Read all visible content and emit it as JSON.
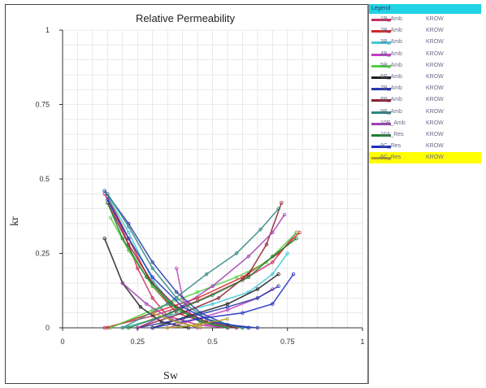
{
  "chart_data": {
    "type": "line",
    "title": "Relative Permeability",
    "xlabel": "Sw",
    "ylabel": "kr",
    "xlim": [
      0,
      1
    ],
    "ylim": [
      0,
      1
    ],
    "x_ticks": [
      "0",
      "0.25",
      "0.5",
      "0.75",
      "1"
    ],
    "y_ticks": [
      "0",
      "0.25",
      "0.5",
      "0.75",
      "1"
    ],
    "grid": true,
    "legend_position": "right panel",
    "legend_title": "Legend",
    "series": [
      {
        "name": "1B_Amb",
        "suffix": "KROW",
        "color": "#c83060",
        "krow": [
          [
            0.14,
            0.45
          ],
          [
            0.2,
            0.33
          ],
          [
            0.25,
            0.2
          ],
          [
            0.3,
            0.1
          ],
          [
            0.35,
            0.04
          ],
          [
            0.45,
            0.01
          ],
          [
            0.55,
            0.0
          ]
        ],
        "krw": [
          [
            0.14,
            0.0
          ],
          [
            0.3,
            0.04
          ],
          [
            0.45,
            0.09
          ],
          [
            0.6,
            0.16
          ],
          [
            0.7,
            0.22
          ],
          [
            0.78,
            0.32
          ]
        ]
      },
      {
        "name": "2B_Amb",
        "suffix": "KROW",
        "color": "#d02828",
        "krow": [
          [
            0.15,
            0.44
          ],
          [
            0.22,
            0.3
          ],
          [
            0.3,
            0.14
          ],
          [
            0.38,
            0.05
          ],
          [
            0.5,
            0.01
          ],
          [
            0.6,
            0.0
          ]
        ],
        "krw": [
          [
            0.15,
            0.0
          ],
          [
            0.3,
            0.05
          ],
          [
            0.45,
            0.1
          ],
          [
            0.6,
            0.17
          ],
          [
            0.72,
            0.25
          ],
          [
            0.79,
            0.32
          ]
        ]
      },
      {
        "name": "3B_Amb",
        "suffix": "KROW",
        "color": "#40c8d8",
        "krow": [
          [
            0.14,
            0.46
          ],
          [
            0.22,
            0.32
          ],
          [
            0.3,
            0.16
          ],
          [
            0.38,
            0.06
          ],
          [
            0.5,
            0.01
          ],
          [
            0.62,
            0.0
          ]
        ],
        "krw": [
          [
            0.2,
            0.0
          ],
          [
            0.35,
            0.04
          ],
          [
            0.5,
            0.08
          ],
          [
            0.62,
            0.12
          ],
          [
            0.7,
            0.18
          ],
          [
            0.75,
            0.25
          ]
        ]
      },
      {
        "name": "4B_Amb",
        "suffix": "KROW",
        "color": "#c040c0",
        "krow": [
          [
            0.38,
            0.2
          ],
          [
            0.4,
            0.1
          ],
          [
            0.43,
            0.04
          ],
          [
            0.48,
            0.01
          ],
          [
            0.55,
            0.0
          ]
        ],
        "krw": [
          [
            0.35,
            0.0
          ],
          [
            0.45,
            0.03
          ],
          [
            0.55,
            0.06
          ],
          [
            0.65,
            0.1
          ],
          [
            0.7,
            0.13
          ]
        ]
      },
      {
        "name": "5B_Amb",
        "suffix": "KROW",
        "color": "#50d040",
        "krow": [
          [
            0.16,
            0.37
          ],
          [
            0.22,
            0.26
          ],
          [
            0.3,
            0.14
          ],
          [
            0.38,
            0.06
          ],
          [
            0.48,
            0.02
          ],
          [
            0.6,
            0.0
          ]
        ],
        "krw": [
          [
            0.16,
            0.0
          ],
          [
            0.3,
            0.06
          ],
          [
            0.45,
            0.12
          ],
          [
            0.58,
            0.17
          ],
          [
            0.68,
            0.22
          ],
          [
            0.78,
            0.32
          ]
        ]
      },
      {
        "name": "6B_Amb",
        "suffix": "KROW",
        "color": "#202020",
        "krow": [
          [
            0.14,
            0.3
          ],
          [
            0.2,
            0.15
          ],
          [
            0.26,
            0.07
          ],
          [
            0.33,
            0.02
          ],
          [
            0.42,
            0.0
          ]
        ],
        "krw": [
          [
            0.3,
            0.0
          ],
          [
            0.42,
            0.04
          ],
          [
            0.55,
            0.08
          ],
          [
            0.65,
            0.13
          ],
          [
            0.72,
            0.18
          ]
        ]
      },
      {
        "name": "7B_Amb",
        "suffix": "KROW",
        "color": "#2838a8",
        "krow": [
          [
            0.14,
            0.46
          ],
          [
            0.22,
            0.35
          ],
          [
            0.3,
            0.22
          ],
          [
            0.38,
            0.12
          ],
          [
            0.46,
            0.05
          ],
          [
            0.55,
            0.01
          ],
          [
            0.65,
            0.0
          ]
        ],
        "krw": [
          [
            0.25,
            0.0
          ],
          [
            0.4,
            0.03
          ],
          [
            0.55,
            0.07
          ],
          [
            0.65,
            0.1
          ],
          [
            0.72,
            0.14
          ]
        ]
      },
      {
        "name": "8B_Amb",
        "suffix": "KROW",
        "color": "#902030",
        "krow": [
          [
            0.15,
            0.42
          ],
          [
            0.22,
            0.28
          ],
          [
            0.3,
            0.15
          ],
          [
            0.38,
            0.07
          ],
          [
            0.48,
            0.02
          ],
          [
            0.58,
            0.0
          ]
        ],
        "krw": [
          [
            0.25,
            0.0
          ],
          [
            0.4,
            0.05
          ],
          [
            0.52,
            0.1
          ],
          [
            0.62,
            0.18
          ],
          [
            0.68,
            0.28
          ],
          [
            0.73,
            0.42
          ]
        ]
      },
      {
        "name": "9B_Amb",
        "suffix": "KROW",
        "color": "#308880",
        "krow": [
          [
            0.15,
            0.45
          ],
          [
            0.22,
            0.34
          ],
          [
            0.3,
            0.2
          ],
          [
            0.38,
            0.1
          ],
          [
            0.48,
            0.03
          ],
          [
            0.6,
            0.0
          ]
        ],
        "krw": [
          [
            0.2,
            0.0
          ],
          [
            0.35,
            0.08
          ],
          [
            0.48,
            0.18
          ],
          [
            0.58,
            0.25
          ],
          [
            0.66,
            0.33
          ],
          [
            0.72,
            0.4
          ]
        ]
      },
      {
        "name": "10B_Amb",
        "suffix": "KROW",
        "color": "#a040b0",
        "krow": [
          [
            0.2,
            0.15
          ],
          [
            0.28,
            0.08
          ],
          [
            0.36,
            0.03
          ],
          [
            0.45,
            0.0
          ]
        ],
        "krw": [
          [
            0.25,
            0.0
          ],
          [
            0.38,
            0.06
          ],
          [
            0.5,
            0.14
          ],
          [
            0.62,
            0.24
          ],
          [
            0.7,
            0.32
          ],
          [
            0.74,
            0.38
          ]
        ]
      },
      {
        "name": "10A_Res",
        "suffix": "KROW",
        "color": "#208030",
        "krow": [
          [
            0.15,
            0.42
          ],
          [
            0.2,
            0.3
          ],
          [
            0.28,
            0.17
          ],
          [
            0.36,
            0.08
          ],
          [
            0.46,
            0.02
          ],
          [
            0.55,
            0.0
          ]
        ],
        "krw": [
          [
            0.22,
            0.0
          ],
          [
            0.36,
            0.05
          ],
          [
            0.5,
            0.11
          ],
          [
            0.62,
            0.17
          ],
          [
            0.7,
            0.24
          ],
          [
            0.78,
            0.3
          ]
        ]
      },
      {
        "name": "9C_Res",
        "suffix": "KROW",
        "color": "#2030c0",
        "krow": [
          [
            0.15,
            0.43
          ],
          [
            0.22,
            0.3
          ],
          [
            0.3,
            0.17
          ],
          [
            0.4,
            0.07
          ],
          [
            0.5,
            0.02
          ],
          [
            0.62,
            0.0
          ]
        ],
        "krw": [
          [
            0.3,
            0.0
          ],
          [
            0.45,
            0.03
          ],
          [
            0.6,
            0.05
          ],
          [
            0.7,
            0.08
          ],
          [
            0.77,
            0.18
          ]
        ]
      },
      {
        "name": "6C_Res",
        "suffix": "KROW",
        "color": "#b0a020",
        "highlighted": true,
        "krow": [
          [
            0.3,
            0.05
          ],
          [
            0.38,
            0.02
          ],
          [
            0.46,
            0.0
          ]
        ],
        "krw": [
          [
            0.35,
            0.0
          ],
          [
            0.45,
            0.01
          ],
          [
            0.55,
            0.03
          ]
        ]
      }
    ]
  }
}
